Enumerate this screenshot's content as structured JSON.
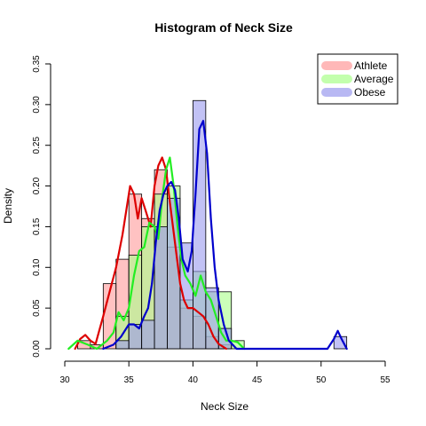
{
  "chart_data": {
    "type": "histogram",
    "title": "Histogram of Neck Size",
    "xlabel": "Neck Size",
    "ylabel": "Density",
    "xlim": [
      30,
      55
    ],
    "ylim": [
      0,
      0.35
    ],
    "x_ticks": [
      30,
      35,
      40,
      45,
      50,
      55
    ],
    "y_ticks": [
      0.0,
      0.05,
      0.1,
      0.15,
      0.2,
      0.25,
      0.3,
      0.35
    ],
    "x_tick_labels": [
      "30",
      "35",
      "40",
      "45",
      "50",
      "55"
    ],
    "y_tick_labels": [
      "0.00",
      "0.05",
      "0.10",
      "0.15",
      "0.20",
      "0.25",
      "0.30",
      "0.35"
    ],
    "grid": false,
    "legend_position": "top-right",
    "legend_labels": [
      "Athlete",
      "Average",
      "Obese"
    ],
    "series": [
      {
        "name": "Athlete",
        "fill_color": "#ff9a9a",
        "line_color": "#dd0000",
        "bins": [
          {
            "x0": 31,
            "x1": 32,
            "density": 0.01
          },
          {
            "x0": 32,
            "x1": 33,
            "density": 0.005
          },
          {
            "x0": 33,
            "x1": 34,
            "density": 0.08
          },
          {
            "x0": 34,
            "x1": 35,
            "density": 0.11
          },
          {
            "x0": 35,
            "x1": 36,
            "density": 0.19
          },
          {
            "x0": 36,
            "x1": 37,
            "density": 0.16
          },
          {
            "x0": 37,
            "x1": 38,
            "density": 0.22
          },
          {
            "x0": 38,
            "x1": 39,
            "density": 0.125
          },
          {
            "x0": 39,
            "x1": 40,
            "density": 0.05
          },
          {
            "x0": 40,
            "x1": 41,
            "density": 0.04
          },
          {
            "x0": 41,
            "x1": 42,
            "density": 0.015
          },
          {
            "x0": 42,
            "x1": 43,
            "density": 0.005
          }
        ],
        "density_curve": [
          [
            30.8,
            0.0
          ],
          [
            31.2,
            0.012
          ],
          [
            31.6,
            0.017
          ],
          [
            32.0,
            0.01
          ],
          [
            32.4,
            0.006
          ],
          [
            33.0,
            0.04
          ],
          [
            33.5,
            0.07
          ],
          [
            34.0,
            0.1
          ],
          [
            34.5,
            0.14
          ],
          [
            34.8,
            0.17
          ],
          [
            35.1,
            0.2
          ],
          [
            35.4,
            0.19
          ],
          [
            35.7,
            0.16
          ],
          [
            36.0,
            0.185
          ],
          [
            36.3,
            0.17
          ],
          [
            36.7,
            0.15
          ],
          [
            37.0,
            0.2
          ],
          [
            37.3,
            0.225
          ],
          [
            37.6,
            0.235
          ],
          [
            37.9,
            0.22
          ],
          [
            38.2,
            0.18
          ],
          [
            38.6,
            0.13
          ],
          [
            39.0,
            0.08
          ],
          [
            39.3,
            0.06
          ],
          [
            39.6,
            0.05
          ],
          [
            40.0,
            0.05
          ],
          [
            40.4,
            0.045
          ],
          [
            40.8,
            0.04
          ],
          [
            41.2,
            0.03
          ],
          [
            41.6,
            0.015
          ],
          [
            42.0,
            0.006
          ],
          [
            42.6,
            0.0
          ]
        ]
      },
      {
        "name": "Average",
        "fill_color": "#aaff8a",
        "line_color": "#22ee22",
        "bins": [
          {
            "x0": 34,
            "x1": 35,
            "density": 0.04
          },
          {
            "x0": 35,
            "x1": 36,
            "density": 0.115
          },
          {
            "x0": 36,
            "x1": 37,
            "density": 0.15
          },
          {
            "x0": 37,
            "x1": 38,
            "density": 0.19
          },
          {
            "x0": 38,
            "x1": 39,
            "density": 0.2
          },
          {
            "x0": 39,
            "x1": 40,
            "density": 0.06
          },
          {
            "x0": 40,
            "x1": 41,
            "density": 0.095
          },
          {
            "x0": 41,
            "x1": 42,
            "density": 0.07
          },
          {
            "x0": 42,
            "x1": 43,
            "density": 0.07
          },
          {
            "x0": 43,
            "x1": 44,
            "density": 0.01
          }
        ],
        "density_curve": [
          [
            30.3,
            0.0
          ],
          [
            31.0,
            0.01
          ],
          [
            31.8,
            0.005
          ],
          [
            32.5,
            0.0
          ],
          [
            33.3,
            0.01
          ],
          [
            33.8,
            0.02
          ],
          [
            34.2,
            0.045
          ],
          [
            34.6,
            0.035
          ],
          [
            35.0,
            0.05
          ],
          [
            35.4,
            0.09
          ],
          [
            35.8,
            0.12
          ],
          [
            36.2,
            0.125
          ],
          [
            36.6,
            0.155
          ],
          [
            37.0,
            0.15
          ],
          [
            37.3,
            0.135
          ],
          [
            37.6,
            0.185
          ],
          [
            37.9,
            0.22
          ],
          [
            38.2,
            0.235
          ],
          [
            38.5,
            0.2
          ],
          [
            38.8,
            0.15
          ],
          [
            39.1,
            0.11
          ],
          [
            39.4,
            0.09
          ],
          [
            39.8,
            0.08
          ],
          [
            40.2,
            0.065
          ],
          [
            40.6,
            0.09
          ],
          [
            41.0,
            0.07
          ],
          [
            41.4,
            0.06
          ],
          [
            41.8,
            0.04
          ],
          [
            42.2,
            0.02
          ],
          [
            42.6,
            0.01
          ],
          [
            43.0,
            0.01
          ],
          [
            43.5,
            0.008
          ],
          [
            44.0,
            0.0
          ]
        ]
      },
      {
        "name": "Obese",
        "fill_color": "#9a9aee",
        "line_color": "#0000cc",
        "bins": [
          {
            "x0": 34,
            "x1": 35,
            "density": 0.01
          },
          {
            "x0": 35,
            "x1": 36,
            "density": 0.03
          },
          {
            "x0": 36,
            "x1": 37,
            "density": 0.035
          },
          {
            "x0": 37,
            "x1": 38,
            "density": 0.15
          },
          {
            "x0": 38,
            "x1": 39,
            "density": 0.185
          },
          {
            "x0": 39,
            "x1": 40,
            "density": 0.13
          },
          {
            "x0": 40,
            "x1": 41,
            "density": 0.305
          },
          {
            "x0": 41,
            "x1": 42,
            "density": 0.075
          },
          {
            "x0": 42,
            "x1": 43,
            "density": 0.025
          },
          {
            "x0": 51,
            "x1": 52,
            "density": 0.015
          }
        ],
        "density_curve": [
          [
            33.0,
            0.0
          ],
          [
            33.8,
            0.005
          ],
          [
            34.4,
            0.015
          ],
          [
            35.0,
            0.03
          ],
          [
            35.4,
            0.03
          ],
          [
            35.8,
            0.025
          ],
          [
            36.2,
            0.04
          ],
          [
            36.5,
            0.05
          ],
          [
            36.8,
            0.08
          ],
          [
            37.1,
            0.13
          ],
          [
            37.4,
            0.17
          ],
          [
            37.7,
            0.19
          ],
          [
            38.0,
            0.2
          ],
          [
            38.3,
            0.205
          ],
          [
            38.6,
            0.195
          ],
          [
            38.9,
            0.16
          ],
          [
            39.2,
            0.11
          ],
          [
            39.6,
            0.095
          ],
          [
            39.9,
            0.12
          ],
          [
            40.2,
            0.19
          ],
          [
            40.5,
            0.27
          ],
          [
            40.8,
            0.28
          ],
          [
            41.1,
            0.24
          ],
          [
            41.4,
            0.16
          ],
          [
            41.7,
            0.1
          ],
          [
            42.0,
            0.06
          ],
          [
            42.4,
            0.03
          ],
          [
            42.8,
            0.01
          ],
          [
            43.4,
            0.0
          ],
          [
            50.5,
            0.0
          ],
          [
            51.0,
            0.012
          ],
          [
            51.3,
            0.022
          ],
          [
            51.6,
            0.012
          ],
          [
            52.0,
            0.0
          ]
        ]
      }
    ]
  }
}
